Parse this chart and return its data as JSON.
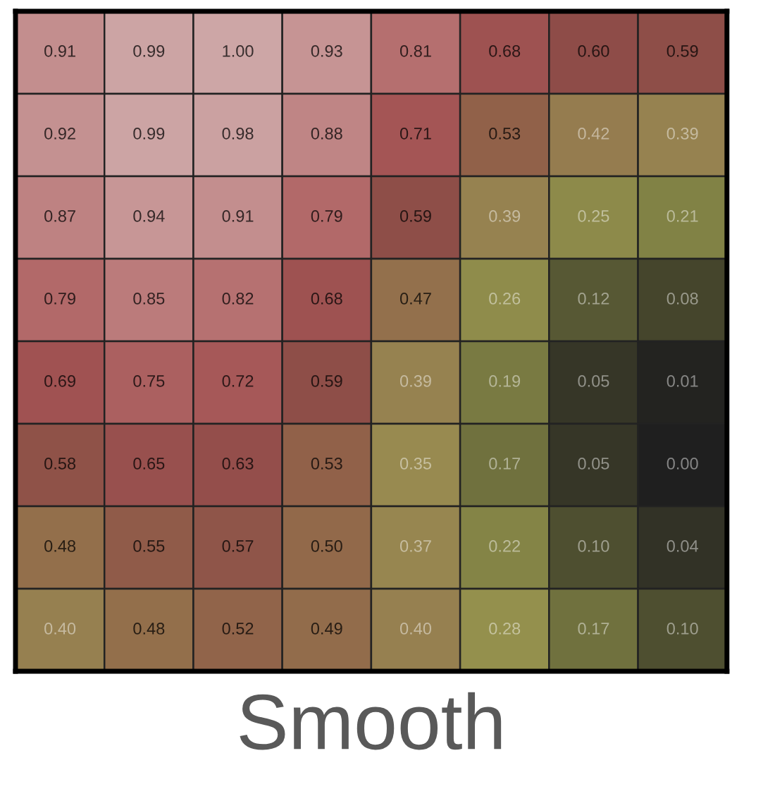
{
  "chart_data": {
    "type": "heatmap",
    "title": "Smooth",
    "categories": [
      null,
      null,
      null,
      null,
      null,
      null,
      null,
      null
    ],
    "y_categories": [
      null,
      null,
      null,
      null,
      null,
      null,
      null,
      null
    ],
    "cells": [
      [
        0.91,
        0.99,
        1.0,
        0.93,
        0.81,
        0.68,
        0.6,
        0.59
      ],
      [
        0.92,
        0.99,
        0.98,
        0.88,
        0.71,
        0.53,
        0.42,
        0.39
      ],
      [
        0.87,
        0.94,
        0.91,
        0.79,
        0.59,
        0.39,
        0.25,
        0.21
      ],
      [
        0.79,
        0.85,
        0.82,
        0.68,
        0.47,
        0.26,
        0.12,
        0.08
      ],
      [
        0.69,
        0.75,
        0.72,
        0.59,
        0.39,
        0.19,
        0.05,
        0.01
      ],
      [
        0.58,
        0.65,
        0.63,
        0.53,
        0.35,
        0.17,
        0.05,
        0.0
      ],
      [
        0.48,
        0.55,
        0.57,
        0.5,
        0.37,
        0.22,
        0.1,
        0.04
      ],
      [
        0.4,
        0.48,
        0.52,
        0.49,
        0.4,
        0.28,
        0.17,
        0.1
      ]
    ],
    "cell_labels": [
      [
        "0.91",
        "0.99",
        "1.00",
        "0.93",
        "0.81",
        "0.68",
        "0.60",
        "0.59"
      ],
      [
        "0.92",
        "0.99",
        "0.98",
        "0.88",
        "0.71",
        "0.53",
        "0.42",
        "0.39"
      ],
      [
        "0.87",
        "0.94",
        "0.91",
        "0.79",
        "0.59",
        "0.39",
        "0.25",
        "0.21"
      ],
      [
        "0.79",
        "0.85",
        "0.82",
        "0.68",
        "0.47",
        "0.26",
        "0.12",
        "0.08"
      ],
      [
        "0.69",
        "0.75",
        "0.72",
        "0.59",
        "0.39",
        "0.19",
        "0.05",
        "0.01"
      ],
      [
        "0.58",
        "0.65",
        "0.63",
        "0.53",
        "0.35",
        "0.17",
        "0.05",
        "0.00"
      ],
      [
        "0.48",
        "0.55",
        "0.57",
        "0.50",
        "0.37",
        "0.22",
        "0.10",
        "0.04"
      ],
      [
        "0.40",
        "0.48",
        "0.52",
        "0.49",
        "0.40",
        "0.28",
        "0.17",
        "0.10"
      ]
    ],
    "colors": [
      "#1f1f1f",
      "#4f5030",
      "#7f8044",
      "#9a9450",
      "#968050",
      "#926a4a",
      "#8e4c48",
      "#a25353",
      "#b36b6b",
      "#c28b8b",
      "#cda6a6"
    ]
  }
}
